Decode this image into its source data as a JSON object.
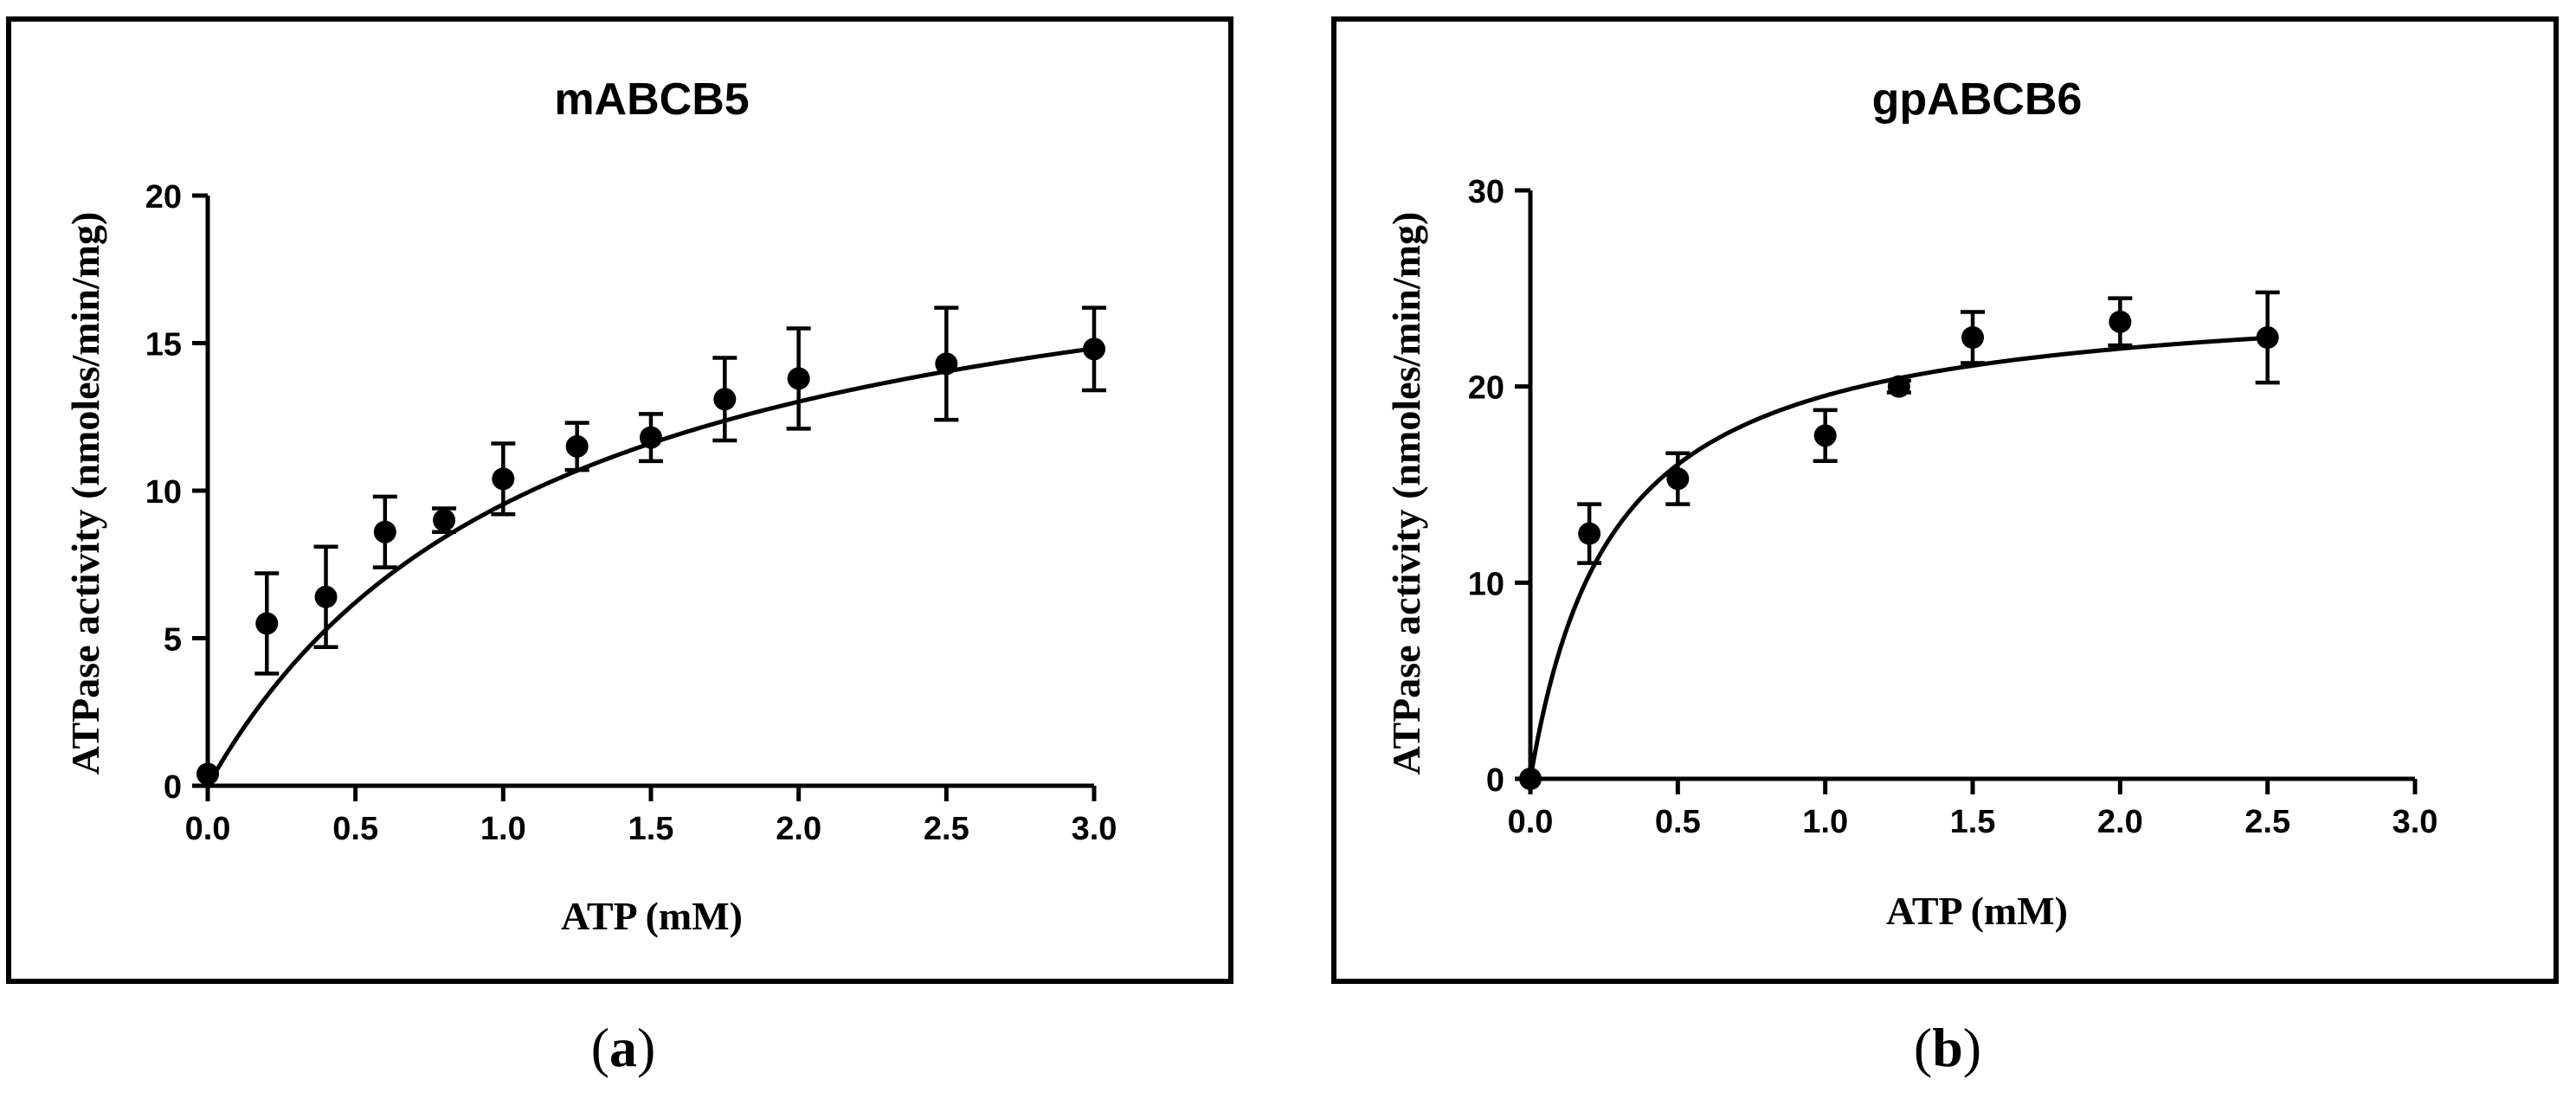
{
  "chart_data": [
    {
      "type": "scatter",
      "title": "mABCB5",
      "xlabel": "ATP (mM)",
      "ylabel": "ATPase activity (nmoles/min/mg)",
      "caption": "a",
      "xlim": [
        0,
        3
      ],
      "ylim": [
        0,
        20
      ],
      "xticks": [
        0,
        0.5,
        1,
        1.5,
        2,
        2.5,
        3
      ],
      "xtick_labels": [
        "0.0",
        "0.5",
        "1.0",
        "1.5",
        "2.0",
        "2.5",
        "3.0"
      ],
      "yticks": [
        0,
        5,
        10,
        15,
        20
      ],
      "ytick_labels": [
        "0",
        "5",
        "10",
        "15",
        "20"
      ],
      "x": [
        0,
        0.2,
        0.4,
        0.6,
        0.8,
        1.0,
        1.25,
        1.5,
        1.75,
        2.0,
        2.5,
        3.0
      ],
      "y": [
        0.4,
        5.5,
        6.4,
        8.6,
        9.0,
        10.4,
        11.5,
        11.8,
        13.1,
        13.8,
        14.3,
        14.8
      ],
      "yerr": [
        0,
        1.7,
        1.7,
        1.2,
        0.4,
        1.2,
        0.8,
        0.8,
        1.4,
        1.7,
        1.9,
        1.4
      ],
      "fit": {
        "model": "michaelis-menten",
        "vmax": 20.5,
        "km": 1.15
      }
    },
    {
      "type": "scatter",
      "title": "gpABCB6",
      "xlabel": "ATP (mM)",
      "ylabel": "ATPase activity (nmoles/min/mg)",
      "caption": "b",
      "xlim": [
        0,
        3
      ],
      "ylim": [
        0,
        30
      ],
      "xticks": [
        0,
        0.5,
        1,
        1.5,
        2,
        2.5,
        3
      ],
      "xtick_labels": [
        "0.0",
        "0.5",
        "1.0",
        "1.5",
        "2.0",
        "2.5",
        "3.0"
      ],
      "yticks": [
        0,
        10,
        20,
        30
      ],
      "ytick_labels": [
        "0",
        "10",
        "20",
        "30"
      ],
      "x": [
        0,
        0.2,
        0.5,
        1.0,
        1.25,
        1.5,
        2.0,
        2.5
      ],
      "y": [
        0,
        12.5,
        15.3,
        17.5,
        20.0,
        22.5,
        23.3,
        22.5
      ],
      "yerr": [
        0,
        1.5,
        1.3,
        1.3,
        0.3,
        1.3,
        1.2,
        2.3
      ],
      "fit": {
        "model": "michaelis-menten",
        "vmax": 25.0,
        "km": 0.28
      }
    }
  ]
}
